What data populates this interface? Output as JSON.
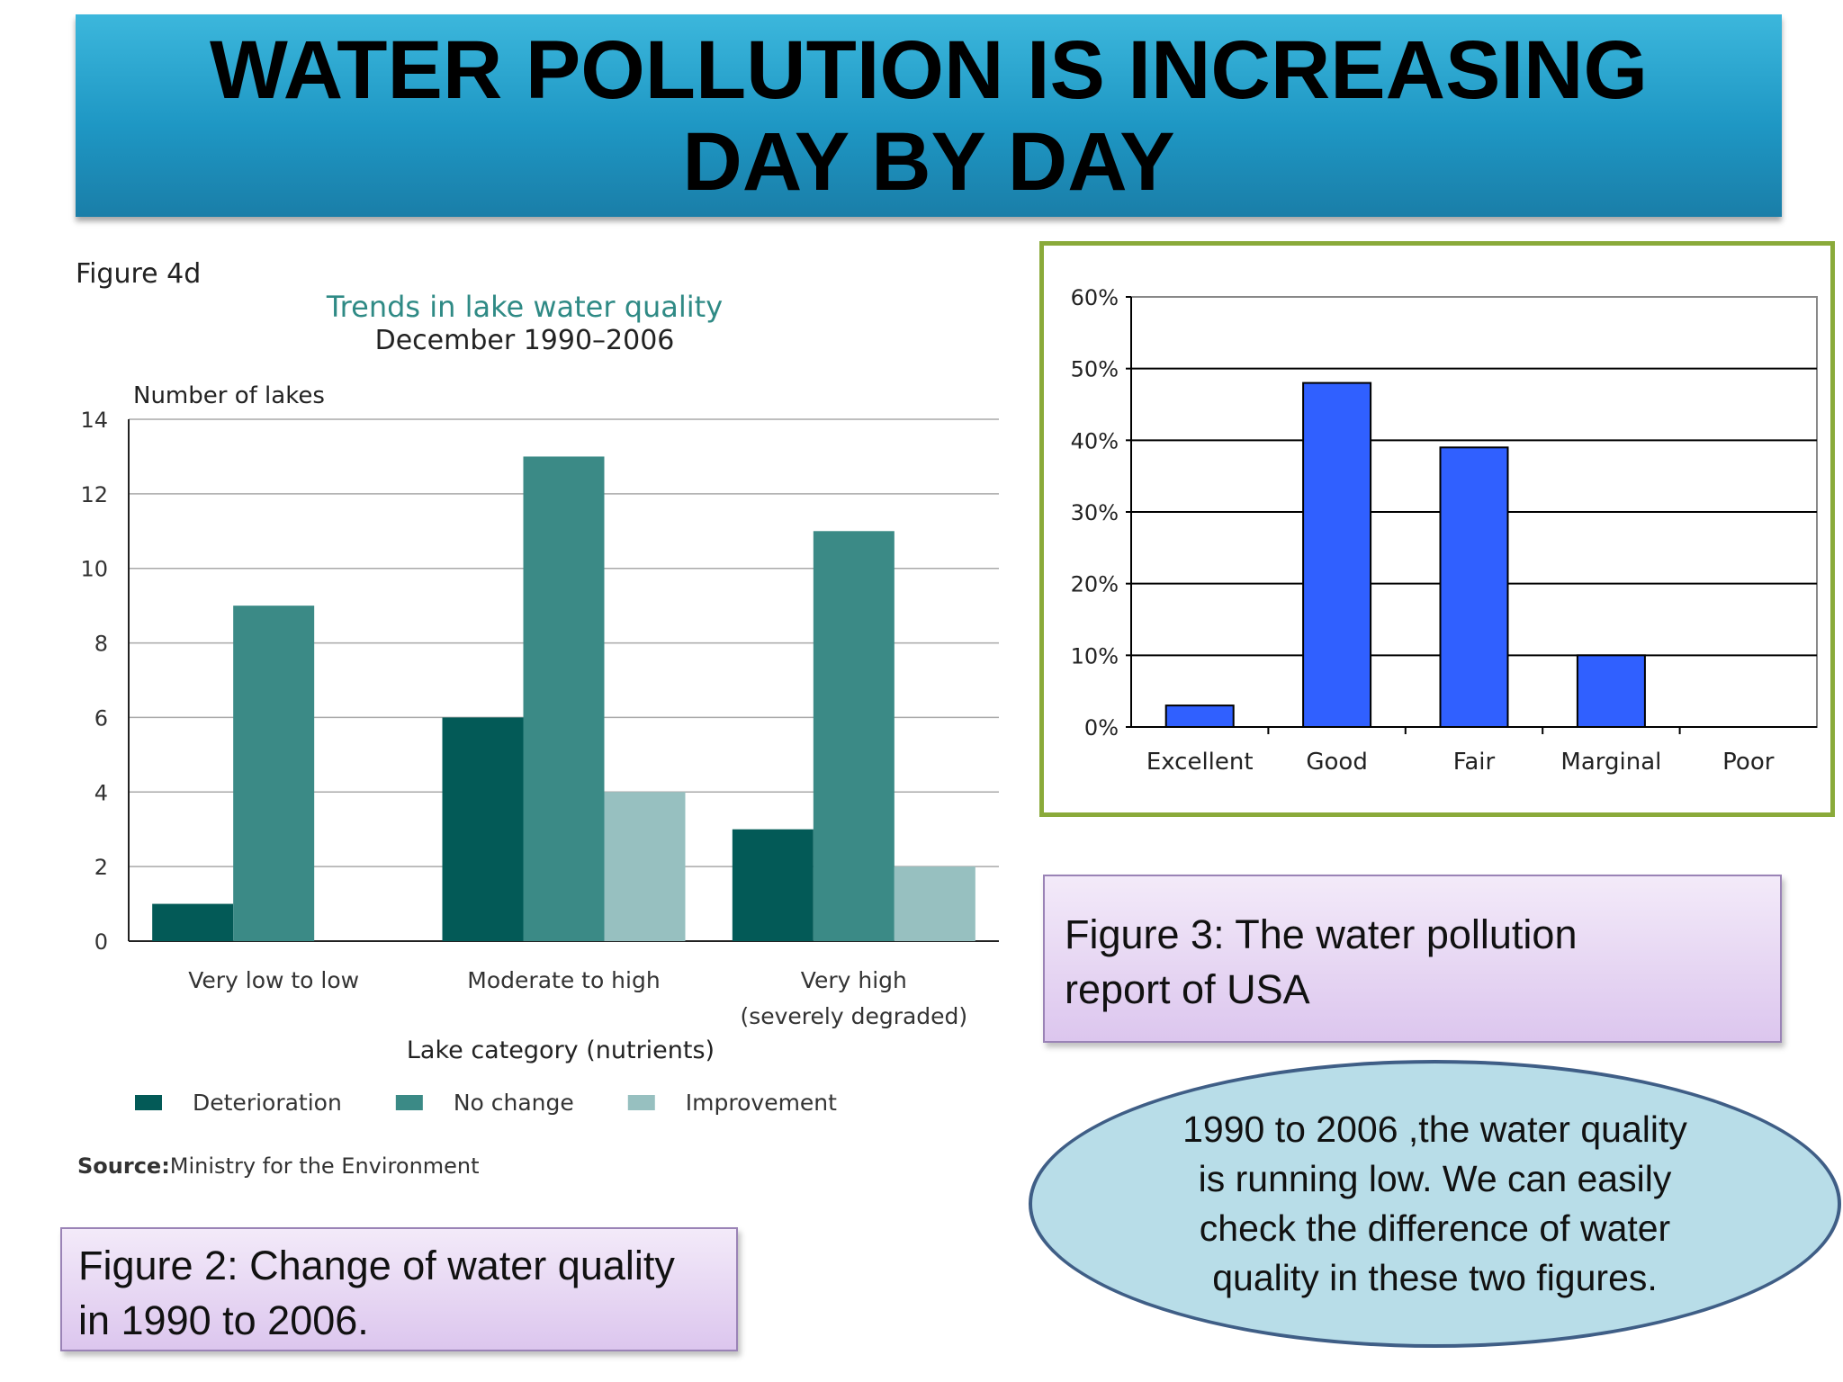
{
  "slide": {
    "title": "WATER POLLUTION IS INCREASING\nDAY BY DAY",
    "figure2_caption": "Figure 2: Change of water quality\nin 1990 to 2006.",
    "figure3_caption": "Figure 3:  The water  pollution\nreport of  USA",
    "summary_text": "1990 to 2006 ,the water quality\nis running low. We can easily\ncheck the difference of water\nquality in these two figures."
  },
  "chart_data": [
    {
      "type": "bar",
      "figure_label": "Figure 4d",
      "title": "Trends in lake water quality",
      "subtitle": "December 1990–2006",
      "ylabel": "Number of lakes",
      "xlabel": "Lake category (nutrients)",
      "categories": [
        "Very low to low",
        "Moderate to high",
        "Very high\n(severely degraded)"
      ],
      "series": [
        {
          "name": "Deterioration",
          "color": "#035a57",
          "values": [
            1,
            6,
            3
          ]
        },
        {
          "name": "No change",
          "color": "#3b8a86",
          "values": [
            9,
            13,
            11
          ]
        },
        {
          "name": "Improvement",
          "color": "#97c0c0",
          "values": [
            0,
            4,
            2
          ]
        }
      ],
      "ylim": [
        0,
        14
      ],
      "yticks": [
        0,
        2,
        4,
        6,
        8,
        10,
        12,
        14
      ],
      "grid": true,
      "legend_position": "bottom",
      "source_label": "Source:",
      "source_text": "Ministry for the Environment"
    },
    {
      "type": "bar",
      "categories": [
        "Excellent",
        "Good",
        "Fair",
        "Marginal",
        "Poor"
      ],
      "series": [
        {
          "color": "#3060ff",
          "values": [
            3,
            48,
            39,
            10,
            0
          ]
        }
      ],
      "ylim": [
        0,
        60
      ],
      "yticks": [
        0,
        10,
        20,
        30,
        40,
        50,
        60
      ],
      "ytick_labels": [
        "0%",
        "10%",
        "20%",
        "30%",
        "40%",
        "50%",
        "60%"
      ],
      "grid": true
    }
  ]
}
